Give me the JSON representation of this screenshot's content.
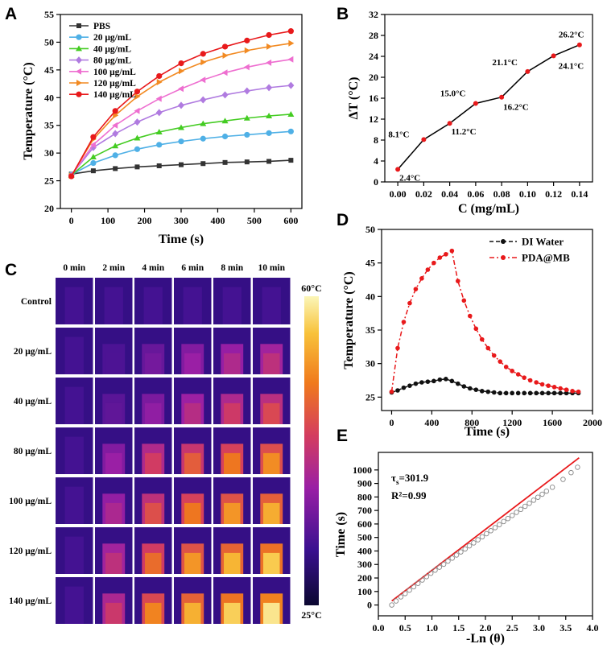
{
  "chart_data": [
    {
      "panel": "A",
      "type": "line",
      "xlabel": "Time (s)",
      "ylabel": "Temperature (°C)",
      "xlim": [
        -30,
        630
      ],
      "ylim": [
        20,
        55
      ],
      "xticks": [
        0,
        100,
        200,
        300,
        400,
        500,
        600
      ],
      "yticks": [
        20,
        25,
        30,
        35,
        40,
        45,
        50,
        55
      ],
      "x": [
        0,
        60,
        120,
        180,
        240,
        300,
        360,
        420,
        480,
        540,
        600
      ],
      "legend_position": "top-left",
      "series": [
        {
          "name": "PBS",
          "color": "#333333",
          "marker": "square",
          "values": [
            26.2,
            26.8,
            27.2,
            27.5,
            27.7,
            27.9,
            28.1,
            28.3,
            28.4,
            28.5,
            28.7
          ]
        },
        {
          "name": "20 μg/mL",
          "color": "#4fb0e6",
          "marker": "circle",
          "values": [
            26.1,
            28.2,
            29.6,
            30.7,
            31.5,
            32.1,
            32.6,
            33.0,
            33.3,
            33.6,
            33.9
          ]
        },
        {
          "name": "40 μg/mL",
          "color": "#44cc22",
          "marker": "triangle-up",
          "values": [
            26.0,
            29.3,
            31.3,
            32.7,
            33.8,
            34.6,
            35.3,
            35.8,
            36.3,
            36.7,
            37.0
          ]
        },
        {
          "name": "80 μg/mL",
          "color": "#b07be0",
          "marker": "diamond",
          "values": [
            26.0,
            31.0,
            33.5,
            35.6,
            37.3,
            38.6,
            39.6,
            40.5,
            41.2,
            41.8,
            42.2
          ]
        },
        {
          "name": "100 μg/mL",
          "color": "#ee6fd0",
          "marker": "triangle-left",
          "values": [
            26.0,
            31.5,
            35.0,
            37.6,
            39.8,
            41.6,
            43.2,
            44.5,
            45.5,
            46.3,
            46.9
          ]
        },
        {
          "name": "120 μg/mL",
          "color": "#f28a22",
          "marker": "triangle-right",
          "values": [
            25.9,
            32.5,
            36.8,
            40.2,
            42.8,
            44.8,
            46.4,
            47.6,
            48.5,
            49.2,
            49.8
          ]
        },
        {
          "name": "140 μg/mL",
          "color": "#e8191b",
          "marker": "circle",
          "values": [
            25.8,
            32.9,
            37.6,
            41.1,
            43.9,
            46.2,
            47.9,
            49.2,
            50.3,
            51.3,
            52.0
          ]
        }
      ]
    },
    {
      "panel": "B",
      "type": "line",
      "xlabel": "C (mg/mL)",
      "ylabel": "ΔT (°C)",
      "xlim": [
        -0.01,
        0.15
      ],
      "ylim": [
        0,
        32
      ],
      "xticks": [
        "0.00",
        "0.02",
        "0.04",
        "0.06",
        "0.08",
        "0.10",
        "0.12",
        "0.14"
      ],
      "yticks": [
        0,
        4,
        8,
        12,
        16,
        20,
        24,
        28,
        32
      ],
      "x": [
        0,
        0.02,
        0.04,
        0.06,
        0.08,
        0.1,
        0.12,
        0.14
      ],
      "values": [
        2.4,
        8.1,
        11.2,
        15.0,
        16.2,
        21.1,
        24.1,
        26.2
      ],
      "data_labels": [
        "2.4°C",
        "8.1°C",
        "11.2°C",
        "15.0°C",
        "16.2°C",
        "21.1°C",
        "24.1°C",
        "26.2°C"
      ]
    },
    {
      "panel": "C",
      "type": "heatmap",
      "columns": [
        "0 min",
        "2 min",
        "4 min",
        "6 min",
        "8 min",
        "10 min"
      ],
      "rows": [
        {
          "label": "Control",
          "intensity": [
            0.02,
            0.03,
            0.03,
            0.04,
            0.05,
            0.06
          ]
        },
        {
          "label": "20 μg/mL",
          "intensity": [
            0.05,
            0.14,
            0.22,
            0.3,
            0.36,
            0.4
          ]
        },
        {
          "label": "40 μg/mL",
          "intensity": [
            0.05,
            0.18,
            0.28,
            0.38,
            0.45,
            0.5
          ]
        },
        {
          "label": "80 μg/mL",
          "intensity": [
            0.05,
            0.3,
            0.46,
            0.56,
            0.63,
            0.68
          ]
        },
        {
          "label": "100 μg/mL",
          "intensity": [
            0.05,
            0.35,
            0.52,
            0.63,
            0.7,
            0.75
          ]
        },
        {
          "label": "120 μg/mL",
          "intensity": [
            0.05,
            0.4,
            0.6,
            0.7,
            0.77,
            0.82
          ]
        },
        {
          "label": "140 μg/mL",
          "intensity": [
            0.05,
            0.44,
            0.66,
            0.76,
            0.83,
            0.88
          ]
        }
      ],
      "colorbar_max": "60°C",
      "colorbar_min": "25°C"
    },
    {
      "panel": "D",
      "type": "line",
      "xlabel": "Time (s)",
      "ylabel": "Temperature (°C)",
      "xlim": [
        -100,
        2000
      ],
      "ylim": [
        23,
        50
      ],
      "xticks": [
        0,
        400,
        800,
        1200,
        1600,
        2000
      ],
      "yticks": [
        25,
        30,
        35,
        40,
        45,
        50
      ],
      "legend_position": "top-right",
      "series": [
        {
          "name": "DI Water",
          "color": "#111111",
          "style": "dash",
          "x": [
            0,
            60,
            120,
            180,
            240,
            300,
            360,
            420,
            480,
            540,
            600,
            660,
            720,
            780,
            840,
            900,
            960,
            1020,
            1080,
            1140,
            1200,
            1260,
            1320,
            1380,
            1440,
            1500,
            1560,
            1620,
            1680,
            1740,
            1800,
            1860
          ],
          "values": [
            25.7,
            26.0,
            26.4,
            26.7,
            27.0,
            27.2,
            27.3,
            27.4,
            27.6,
            27.7,
            27.4,
            27.0,
            26.6,
            26.3,
            26.1,
            25.9,
            25.8,
            25.7,
            25.6,
            25.6,
            25.6,
            25.6,
            25.6,
            25.6,
            25.6,
            25.6,
            25.6,
            25.6,
            25.6,
            25.6,
            25.6,
            25.6
          ]
        },
        {
          "name": "PDA@MB",
          "color": "#e8191b",
          "style": "dash-dot",
          "x": [
            0,
            60,
            120,
            180,
            240,
            300,
            360,
            420,
            480,
            540,
            600,
            660,
            720,
            780,
            840,
            900,
            960,
            1020,
            1080,
            1140,
            1200,
            1260,
            1320,
            1380,
            1440,
            1500,
            1560,
            1620,
            1680,
            1740,
            1800,
            1860
          ],
          "values": [
            25.8,
            32.3,
            36.2,
            39.0,
            41.1,
            42.7,
            44.0,
            45.0,
            45.8,
            46.3,
            46.8,
            42.3,
            39.4,
            37.1,
            35.2,
            33.6,
            32.3,
            31.2,
            30.3,
            29.5,
            28.9,
            28.4,
            27.9,
            27.5,
            27.2,
            26.9,
            26.7,
            26.5,
            26.3,
            26.1,
            25.9,
            25.8
          ]
        }
      ]
    },
    {
      "panel": "E",
      "type": "scatter",
      "xlabel": "-Ln (θ)",
      "ylabel": "Time (s)",
      "xlim": [
        0,
        4.0
      ],
      "ylim": [
        -80,
        1130
      ],
      "xticks": [
        "0.0",
        "0.5",
        "1.0",
        "1.5",
        "2.0",
        "2.5",
        "3.0",
        "3.5",
        "4.0"
      ],
      "yticks": [
        0,
        100,
        200,
        300,
        400,
        500,
        600,
        700,
        800,
        900,
        1000
      ],
      "x": [
        0.25,
        0.33,
        0.42,
        0.5,
        0.58,
        0.66,
        0.74,
        0.82,
        0.9,
        0.98,
        1.06,
        1.14,
        1.22,
        1.3,
        1.38,
        1.46,
        1.54,
        1.62,
        1.7,
        1.78,
        1.86,
        1.94,
        2.02,
        2.1,
        2.18,
        2.26,
        2.34,
        2.42,
        2.5,
        2.58,
        2.66,
        2.74,
        2.82,
        2.9,
        2.98,
        3.06,
        3.14,
        3.25,
        3.45,
        3.6,
        3.72
      ],
      "values": [
        0,
        30,
        60,
        85,
        110,
        135,
        160,
        185,
        210,
        235,
        258,
        280,
        302,
        325,
        347,
        370,
        393,
        415,
        438,
        460,
        483,
        505,
        528,
        550,
        573,
        595,
        618,
        640,
        663,
        686,
        708,
        731,
        753,
        776,
        798,
        820,
        843,
        872,
        930,
        980,
        1020
      ],
      "fit_line": {
        "x": [
          0.25,
          3.75
        ],
        "y": [
          30,
          1090
        ],
        "color": "#e8191b"
      },
      "annotations": {
        "tau_symbol": "τ",
        "tau_sub": "s",
        "tau_value": "=301.9",
        "r2": "R²=0.99"
      }
    }
  ],
  "panel_letters": [
    "A",
    "B",
    "C",
    "D",
    "E"
  ]
}
